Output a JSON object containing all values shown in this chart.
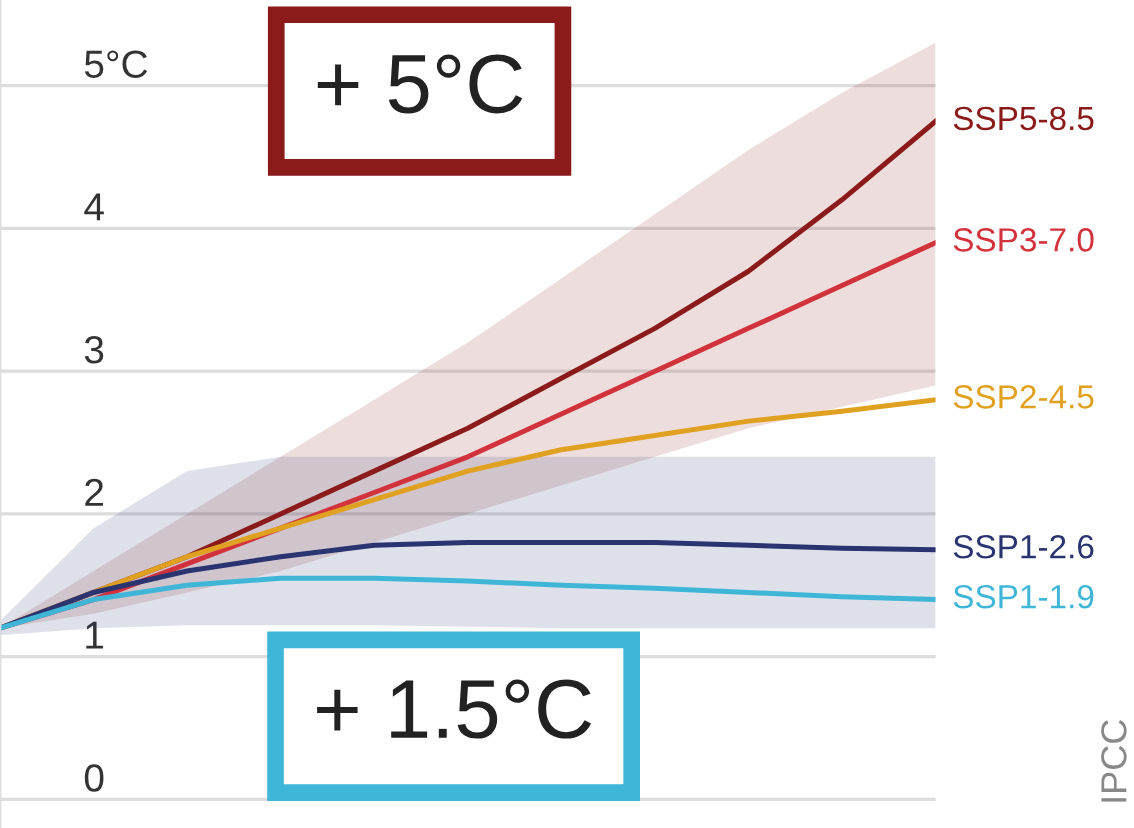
{
  "chart_data": {
    "type": "line",
    "categories": [
      null,
      null,
      null,
      null,
      null,
      null,
      null,
      null,
      null,
      null,
      null
    ],
    "series": [
      {
        "name": "SSP5-8.5",
        "color": "#8b1a1a",
        "values": [
          1.2,
          1.45,
          1.7,
          2.0,
          2.3,
          2.6,
          2.95,
          3.3,
          3.7,
          4.2,
          4.75
        ],
        "lower": [
          1.2,
          1.3,
          1.45,
          1.6,
          1.8,
          2.0,
          2.2,
          2.4,
          2.6,
          2.75,
          2.9
        ],
        "upper": [
          1.2,
          1.6,
          2.0,
          2.4,
          2.8,
          3.2,
          3.65,
          4.1,
          4.55,
          4.95,
          5.3
        ]
      },
      {
        "name": "SSP3-7.0",
        "color": "#d2323c",
        "values": [
          1.2,
          1.4,
          1.65,
          1.9,
          2.15,
          2.4,
          2.7,
          3.0,
          3.3,
          3.6,
          3.9
        ]
      },
      {
        "name": "SSP2-4.5",
        "color": "#e0a020",
        "values": [
          1.2,
          1.45,
          1.7,
          1.9,
          2.1,
          2.3,
          2.45,
          2.55,
          2.65,
          2.72,
          2.8
        ]
      },
      {
        "name": "SSP1-2.6",
        "color": "#2a3470",
        "values": [
          1.2,
          1.45,
          1.6,
          1.7,
          1.78,
          1.8,
          1.8,
          1.8,
          1.78,
          1.76,
          1.75
        ],
        "lower": [
          1.15,
          1.2,
          1.22,
          1.22,
          1.22,
          1.21,
          1.2,
          1.2,
          1.2,
          1.2,
          1.2
        ],
        "upper": [
          1.25,
          1.9,
          2.3,
          2.4,
          2.4,
          2.4,
          2.4,
          2.4,
          2.4,
          2.4,
          2.4
        ]
      },
      {
        "name": "SSP1-1.9",
        "color": "#3fb6d8",
        "values": [
          1.2,
          1.4,
          1.5,
          1.55,
          1.55,
          1.53,
          1.5,
          1.48,
          1.45,
          1.42,
          1.4
        ]
      }
    ],
    "ylim": [
      -0.2,
      5.6
    ],
    "yticks": [
      0,
      1,
      2,
      3,
      4,
      {
        "value": 5,
        "label": "5°C"
      }
    ],
    "grid": "y",
    "annotations": [
      "+ 5°C",
      "+ 1.5°C",
      "IPCC"
    ]
  }
}
